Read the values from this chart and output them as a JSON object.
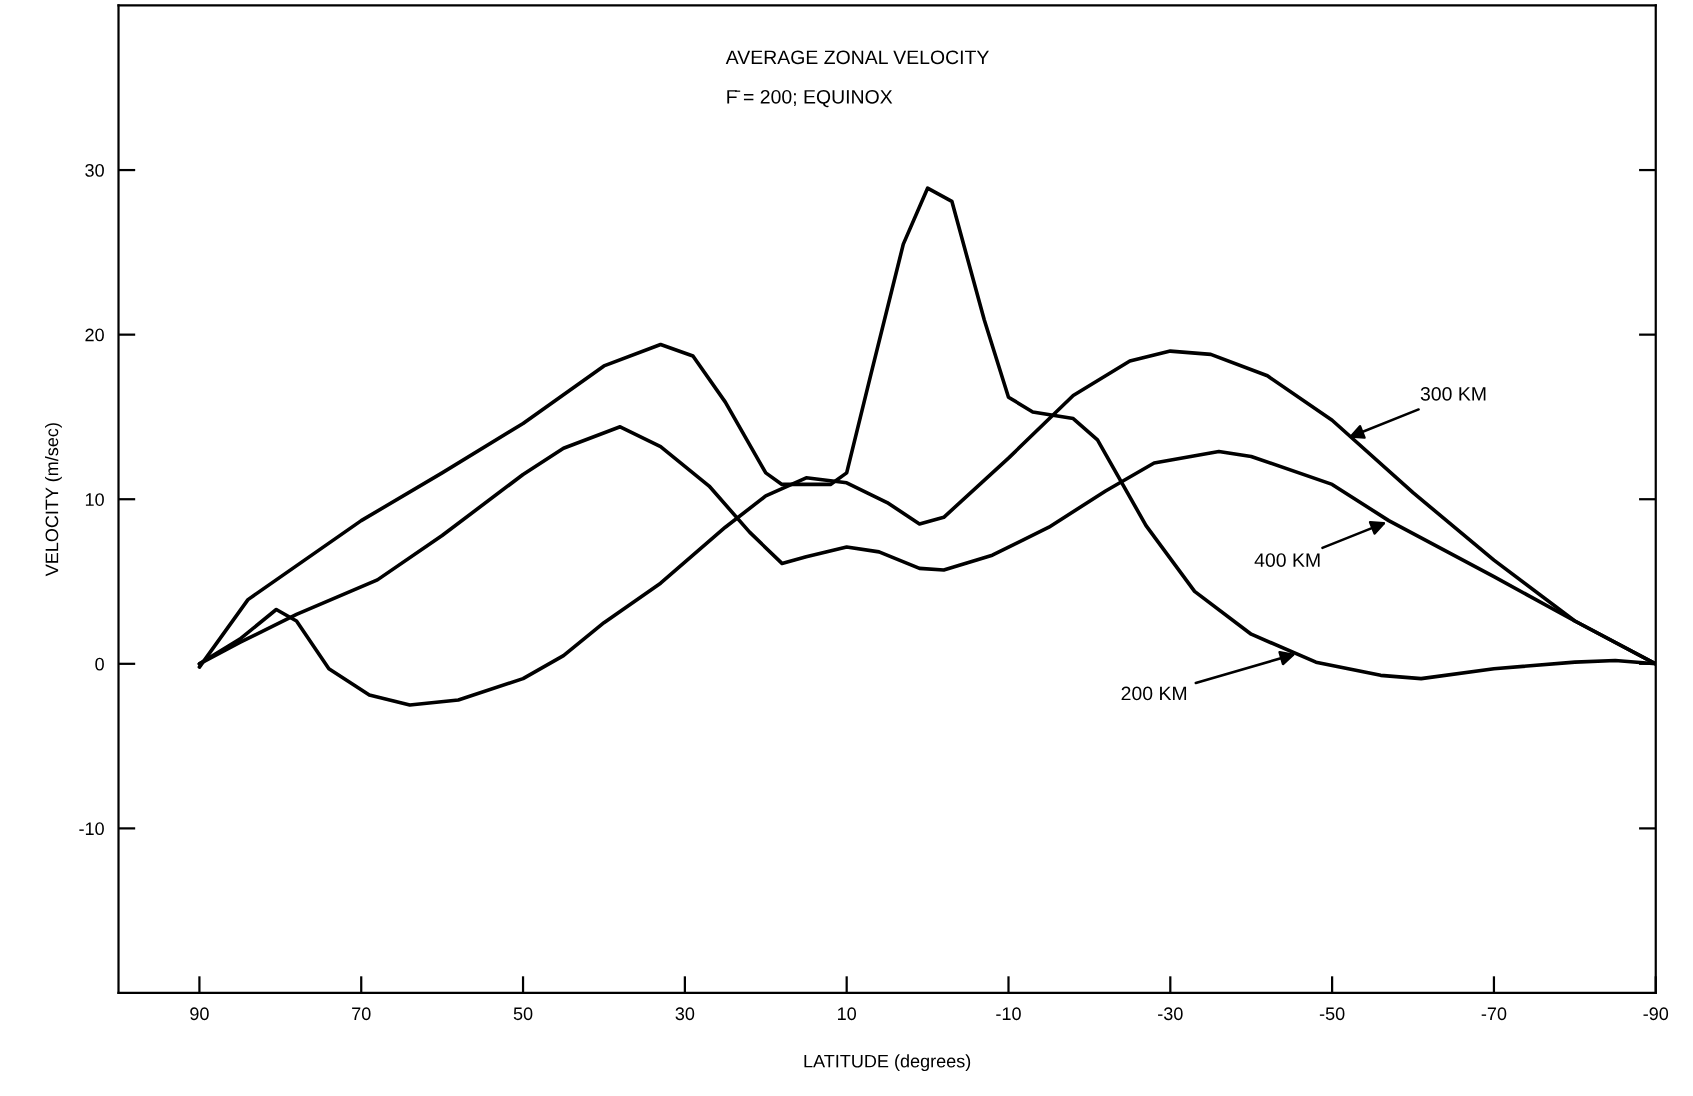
{
  "chart_data": {
    "type": "line",
    "title": "AVERAGE ZONAL VELOCITY",
    "subtitle": "F̄ = 200; EQUINOX",
    "xlabel": "LATITUDE (degrees)",
    "ylabel": "VELOCITY (m/sec)",
    "xlim": [
      100,
      -90
    ],
    "xticks": [
      90,
      70,
      50,
      30,
      10,
      -10,
      -30,
      -50,
      -70,
      -90
    ],
    "ylim": [
      -20,
      40
    ],
    "yticks": [
      -10,
      0,
      10,
      20,
      30
    ],
    "grid": false,
    "legend": false,
    "marker": "none",
    "line_style": "solid",
    "series": [
      {
        "color": "#000000",
        "x": [
          90,
          84,
          70,
          60,
          50,
          40,
          33,
          29,
          25,
          20,
          18,
          12,
          10,
          7,
          3,
          0,
          -3,
          -7,
          -10,
          -13,
          -18,
          -21,
          -27,
          -33,
          -40,
          -48,
          -56,
          -61,
          -70,
          -80,
          -85,
          -90
        ],
        "values": [
          -0.2,
          3.9,
          8.7,
          11.6,
          14.6,
          18.1,
          19.4,
          18.7,
          15.9,
          11.6,
          10.9,
          10.9,
          11.6,
          17.6,
          25.5,
          28.9,
          28.1,
          20.9,
          16.2,
          15.3,
          14.9,
          13.6,
          8.4,
          4.4,
          1.8,
          0.1,
          -0.7,
          -0.9,
          -0.3,
          0.1,
          0.2,
          0
        ]
      },
      {
        "color": "#000000",
        "x": [
          90,
          85,
          80.5,
          78,
          74,
          69,
          64,
          58,
          50,
          45,
          40,
          33,
          25,
          20,
          15,
          10,
          5,
          1,
          -2,
          -10,
          -18,
          -25,
          -30,
          -35,
          -42,
          -50,
          -60,
          -70,
          -80,
          -90
        ],
        "values": [
          0,
          1.5,
          3.3,
          2.6,
          -0.3,
          -1.9,
          -2.5,
          -2.2,
          -0.9,
          0.5,
          2.5,
          4.9,
          8.3,
          10.2,
          11.3,
          11.0,
          9.8,
          8.5,
          8.9,
          12.5,
          16.3,
          18.4,
          19.0,
          18.8,
          17.5,
          14.8,
          10.4,
          6.3,
          2.6,
          0
        ]
      },
      {
        "color": "#000000",
        "x": [
          90,
          85,
          78,
          68,
          60,
          50,
          45,
          38,
          33,
          27,
          22,
          18,
          15,
          10,
          6,
          1,
          -2,
          -8,
          -15,
          -22,
          -28,
          -36,
          -40,
          -50,
          -57,
          -70,
          -80,
          -90
        ],
        "values": [
          0,
          1.3,
          3.0,
          5.1,
          7.8,
          11.5,
          13.1,
          14.4,
          13.2,
          10.8,
          8.0,
          6.1,
          6.5,
          7.1,
          6.8,
          5.8,
          5.7,
          6.6,
          8.3,
          10.5,
          12.2,
          12.9,
          12.6,
          10.9,
          8.7,
          5.3,
          2.6,
          0
        ]
      }
    ],
    "annotations": [
      {
        "text": "300 KM",
        "x": -52,
        "y": 13.75
      },
      {
        "text": "400 KM",
        "x": -56.7,
        "y": 8.6
      },
      {
        "text": "200 KM",
        "x": -45.5,
        "y": 0.6
      }
    ]
  }
}
